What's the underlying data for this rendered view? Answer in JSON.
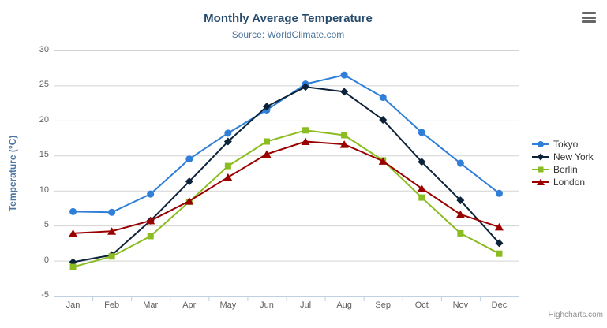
{
  "chart": {
    "credits": "Highcharts.com",
    "menu_icon": "hamburger-menu-icon"
  },
  "colors": {
    "title": "#274b6d",
    "subtitle": "#4d759e",
    "grid": "#d3d3d3",
    "axis_line": "#c0d0e0",
    "axis_label": "#606060",
    "legend_text": "#333333",
    "credits_text": "#909090",
    "menu_bars": "#666666"
  },
  "chart_data": {
    "type": "line",
    "title": "Monthly Average Temperature",
    "subtitle": "Source: WorldClimate.com",
    "xlabel": "",
    "ylabel": "Temperature (°C)",
    "categories": [
      "Jan",
      "Feb",
      "Mar",
      "Apr",
      "May",
      "Jun",
      "Jul",
      "Aug",
      "Sep",
      "Oct",
      "Nov",
      "Dec"
    ],
    "ylim": [
      -5,
      30
    ],
    "yticks": [
      -5,
      0,
      5,
      10,
      15,
      20,
      25,
      30
    ],
    "grid": true,
    "legend_position": "right",
    "series": [
      {
        "name": "Tokyo",
        "color": "#2f7ed8",
        "marker": "circle",
        "values": [
          7.0,
          6.9,
          9.5,
          14.5,
          18.2,
          21.5,
          25.2,
          26.5,
          23.3,
          18.3,
          13.9,
          9.6
        ]
      },
      {
        "name": "New York",
        "color": "#0d233a",
        "marker": "diamond",
        "values": [
          -0.2,
          0.8,
          5.7,
          11.3,
          17.0,
          22.0,
          24.8,
          24.1,
          20.1,
          14.1,
          8.6,
          2.5
        ]
      },
      {
        "name": "Berlin",
        "color": "#8bbc21",
        "marker": "square",
        "values": [
          -0.9,
          0.6,
          3.5,
          8.4,
          13.5,
          17.0,
          18.6,
          17.9,
          14.3,
          9.0,
          3.9,
          1.0
        ]
      },
      {
        "name": "London",
        "color": "#9a0000",
        "marker": "triangle",
        "values": [
          3.9,
          4.2,
          5.7,
          8.5,
          11.9,
          15.2,
          17.0,
          16.6,
          14.2,
          10.3,
          6.6,
          4.8
        ]
      }
    ]
  }
}
